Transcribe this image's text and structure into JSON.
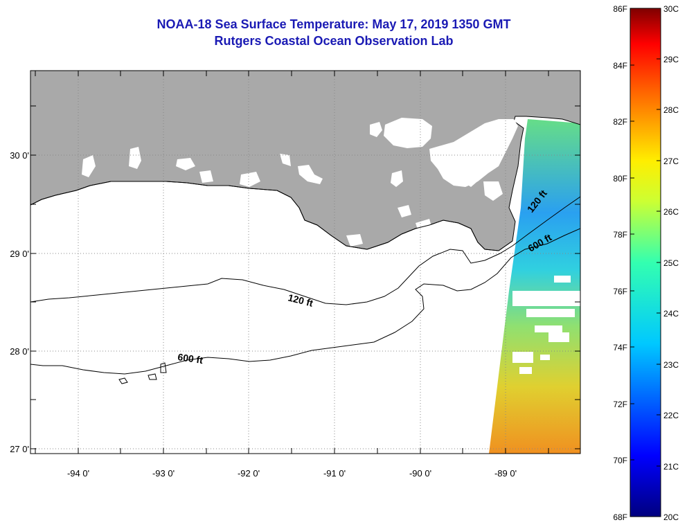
{
  "title": {
    "line1": "NOAA-18 Sea Surface Temperature:  May 17, 2019 1350 GMT",
    "line2": "Rutgers Coastal Ocean Observation Lab"
  },
  "axes": {
    "lon_labels": [
      "-94 0'",
      "-93 0'",
      "-92 0'",
      "-91 0'",
      "-90 0'",
      "-89 0'"
    ],
    "lat_labels": [
      "30 0'",
      "29 0'",
      "28 0'",
      "27 0'"
    ]
  },
  "contours": {
    "label_120_near": "120 ft",
    "label_600_near": "600 ft",
    "label_120_far": "120 ft",
    "label_600_far": "600 ft"
  },
  "colorbar": {
    "fahrenheit": [
      "86F",
      "84F",
      "82F",
      "80F",
      "78F",
      "76F",
      "74F",
      "72F",
      "70F",
      "68F"
    ],
    "celsius": [
      "30C",
      "29C",
      "28C",
      "27C",
      "26C",
      "25C",
      "24C",
      "23C",
      "22C",
      "21C",
      "20C"
    ]
  },
  "colors": {
    "land": "#a9a9a9",
    "title": "#1a1ab4",
    "contour": "#000000"
  }
}
